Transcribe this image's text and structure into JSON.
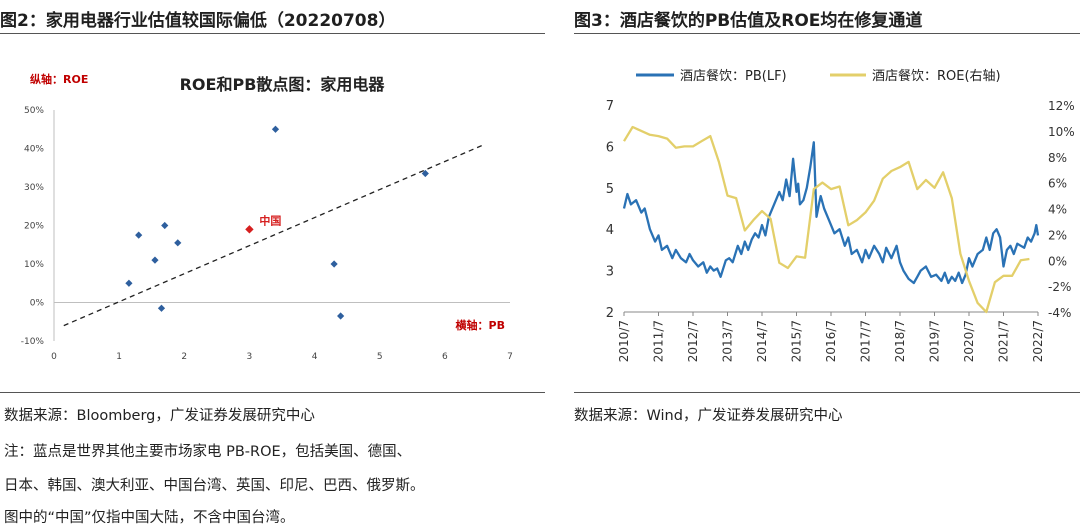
{
  "figure2": {
    "title": "图2：家用电器行业估值较国际偏低（20220708）",
    "source": "数据来源：Bloomberg，广发证券发展研究中心",
    "notes": [
      "注：蓝点是世界其他主要市场家电 PB-ROE，包括美国、德国、",
      "日本、韩国、澳大利亚、中国台湾、英国、印尼、巴西、俄罗斯。",
      "图中的“中国”仅指中国大陆，不含中国台湾。"
    ]
  },
  "figure3": {
    "title": "图3：酒店餐饮的PB估值及ROE均在修复通道",
    "source": "数据来源：Wind，广发证券发展研究中心"
  },
  "colors": {
    "scatter_blue": "#2e5f9e",
    "china_red": "#d62020",
    "pb_line": "#2a72b5",
    "roe_line": "#e3cf6a",
    "axis_label_red": "#c00000"
  },
  "chart_data": [
    {
      "type": "scatter",
      "title": "ROE和PB散点图：家用电器",
      "ylabel": "纵轴：ROE",
      "xlabel": "横轴：PB",
      "xlim": [
        0,
        7
      ],
      "ylim": [
        -10,
        50
      ],
      "x_ticks": [
        "0",
        "1",
        "2",
        "3",
        "4",
        "5",
        "6",
        "7"
      ],
      "y_ticks": [
        "-10%",
        "0%",
        "10%",
        "20%",
        "30%",
        "40%",
        "50%"
      ],
      "points": [
        {
          "x": 1.15,
          "y": 5
        },
        {
          "x": 1.3,
          "y": 17.5
        },
        {
          "x": 1.55,
          "y": 11
        },
        {
          "x": 1.65,
          "y": -1.5
        },
        {
          "x": 1.7,
          "y": 20
        },
        {
          "x": 1.9,
          "y": 15.5
        },
        {
          "x": 3.4,
          "y": 45
        },
        {
          "x": 4.3,
          "y": 10
        },
        {
          "x": 4.4,
          "y": -3.5
        },
        {
          "x": 5.7,
          "y": 33.5
        }
      ],
      "highlight": {
        "label": "中国",
        "x": 3.0,
        "y": 19
      },
      "trendline": {
        "x": [
          0.15,
          6.6
        ],
        "y": [
          -6,
          41
        ]
      }
    },
    {
      "type": "line",
      "x_ticks": [
        "2010/7",
        "2011/7",
        "2012/7",
        "2013/7",
        "2014/7",
        "2015/7",
        "2016/7",
        "2017/7",
        "2018/7",
        "2019/7",
        "2020/7",
        "2021/7",
        "2022/7"
      ],
      "y_left_ticks": [
        "2",
        "3",
        "4",
        "5",
        "6",
        "7"
      ],
      "y_right_ticks": [
        "-4%",
        "-2%",
        "0%",
        "2%",
        "4%",
        "6%",
        "8%",
        "10%",
        "12%"
      ],
      "ylim_left": [
        2,
        7
      ],
      "ylim_right": [
        -4,
        12
      ],
      "series": [
        {
          "name": "酒店餐饮：PB(LF)",
          "axis": "left",
          "x": [
            2010.5,
            2010.6,
            2010.7,
            2010.85,
            2011.0,
            2011.1,
            2011.25,
            2011.4,
            2011.5,
            2011.6,
            2011.75,
            2011.9,
            2012.0,
            2012.15,
            2012.3,
            2012.4,
            2012.5,
            2012.65,
            2012.8,
            2012.9,
            2013.0,
            2013.1,
            2013.2,
            2013.3,
            2013.45,
            2013.55,
            2013.65,
            2013.8,
            2013.9,
            2014.0,
            2014.1,
            2014.2,
            2014.3,
            2014.4,
            2014.5,
            2014.6,
            2014.7,
            2014.85,
            2015.0,
            2015.1,
            2015.2,
            2015.3,
            2015.4,
            2015.5,
            2015.55,
            2015.6,
            2015.7,
            2015.8,
            2015.9,
            2016.0,
            2016.08,
            2016.15,
            2016.2,
            2016.3,
            2016.45,
            2016.6,
            2016.75,
            2016.9,
            2017.0,
            2017.1,
            2017.25,
            2017.4,
            2017.5,
            2017.6,
            2017.75,
            2017.9,
            2018.0,
            2018.1,
            2018.25,
            2018.4,
            2018.5,
            2018.6,
            2018.75,
            2018.9,
            2019.0,
            2019.1,
            2019.25,
            2019.4,
            2019.55,
            2019.7,
            2019.8,
            2019.9,
            2020.0,
            2020.1,
            2020.2,
            2020.3,
            2020.4,
            2020.5,
            2020.6,
            2020.75,
            2020.9,
            2021.0,
            2021.1,
            2021.2,
            2021.3,
            2021.4,
            2021.5,
            2021.6,
            2021.7,
            2021.8,
            2021.9,
            2022.0,
            2022.1,
            2022.2,
            2022.3,
            2022.4,
            2022.45,
            2022.5
          ],
          "values": [
            4.5,
            4.85,
            4.6,
            4.7,
            4.4,
            4.5,
            4.0,
            3.7,
            3.85,
            3.5,
            3.6,
            3.3,
            3.5,
            3.3,
            3.2,
            3.4,
            3.25,
            3.1,
            3.2,
            2.95,
            3.1,
            3.0,
            3.05,
            2.85,
            3.25,
            3.3,
            3.2,
            3.6,
            3.4,
            3.7,
            3.5,
            3.75,
            3.9,
            3.8,
            4.1,
            3.85,
            4.3,
            4.6,
            4.9,
            4.7,
            5.2,
            4.8,
            5.7,
            4.9,
            5.1,
            4.6,
            4.7,
            5.0,
            5.5,
            6.1,
            4.3,
            4.6,
            4.8,
            4.5,
            4.2,
            3.9,
            4.0,
            3.6,
            3.8,
            3.4,
            3.5,
            3.2,
            3.5,
            3.3,
            3.6,
            3.4,
            3.2,
            3.55,
            3.3,
            3.6,
            3.2,
            3.0,
            2.8,
            2.7,
            2.85,
            3.0,
            3.1,
            2.85,
            2.9,
            2.75,
            2.95,
            2.7,
            2.85,
            2.75,
            2.95,
            2.7,
            2.9,
            3.3,
            3.1,
            3.4,
            3.5,
            3.8,
            3.5,
            3.9,
            4.0,
            3.8,
            3.1,
            3.5,
            3.6,
            3.4,
            3.65,
            3.6,
            3.55,
            3.8,
            3.7,
            3.9,
            4.1,
            3.85
          ]
        },
        {
          "name": "酒店餐饮：ROE(右轴)",
          "axis": "right",
          "x": [
            2010.5,
            2010.75,
            2011.0,
            2011.25,
            2011.5,
            2011.75,
            2012.0,
            2012.25,
            2012.5,
            2012.75,
            2013.0,
            2013.25,
            2013.5,
            2013.75,
            2014.0,
            2014.25,
            2014.5,
            2014.75,
            2015.0,
            2015.25,
            2015.5,
            2015.75,
            2016.0,
            2016.25,
            2016.5,
            2016.75,
            2017.0,
            2017.25,
            2017.5,
            2017.75,
            2018.0,
            2018.25,
            2018.5,
            2018.75,
            2019.0,
            2019.25,
            2019.5,
            2019.75,
            2020.0,
            2020.25,
            2020.5,
            2020.75,
            2021.0,
            2021.25,
            2021.5,
            2021.75,
            2022.0,
            2022.25
          ],
          "values": [
            9.2,
            10.3,
            10.0,
            9.7,
            9.6,
            9.4,
            8.7,
            8.8,
            8.8,
            9.2,
            9.6,
            7.6,
            5.0,
            4.8,
            2.3,
            3.1,
            3.8,
            3.2,
            -0.2,
            -0.6,
            0.3,
            0.2,
            5.5,
            6.0,
            5.5,
            5.7,
            2.7,
            3.1,
            3.7,
            4.6,
            6.3,
            6.9,
            7.2,
            7.6,
            5.5,
            6.2,
            5.6,
            6.8,
            4.8,
            0.5,
            -1.6,
            -3.3,
            -4.0,
            -1.7,
            -1.2,
            -1.2,
            0.0,
            0.1
          ]
        }
      ]
    }
  ]
}
